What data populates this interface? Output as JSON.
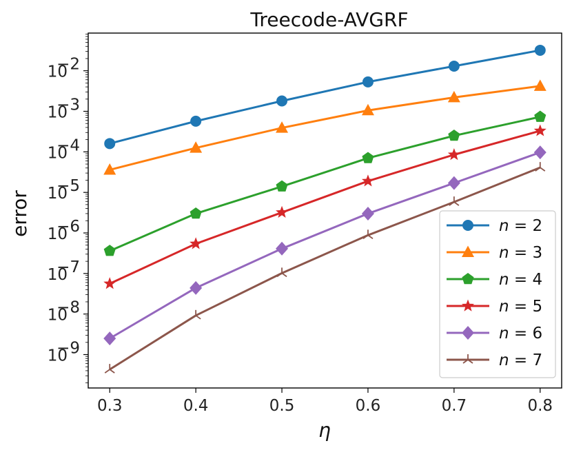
{
  "chart_data": {
    "type": "line",
    "title": "Treecode-AVGRF",
    "xlabel": "η",
    "ylabel": "error",
    "yscale": "log",
    "x": [
      0.3,
      0.4,
      0.5,
      0.6,
      0.7,
      0.8
    ],
    "xticks": [
      "0.3",
      "0.4",
      "0.5",
      "0.6",
      "0.7",
      "0.8"
    ],
    "yticks": [
      {
        "base": "10",
        "exp": "−2",
        "value": 0.01
      },
      {
        "base": "10",
        "exp": "−3",
        "value": 0.001
      },
      {
        "base": "10",
        "exp": "−4",
        "value": 0.0001
      },
      {
        "base": "10",
        "exp": "−5",
        "value": 1e-05
      },
      {
        "base": "10",
        "exp": "−6",
        "value": 1e-06
      },
      {
        "base": "10",
        "exp": "−7",
        "value": 1e-07
      },
      {
        "base": "10",
        "exp": "−8",
        "value": 1e-08
      },
      {
        "base": "10",
        "exp": "−9",
        "value": 1e-09
      }
    ],
    "xlim": [
      0.275,
      0.825
    ],
    "ylim": [
      1.5e-10,
      0.085
    ],
    "legend_position": "lower-right",
    "series": [
      {
        "name": "n = 2",
        "label_var": "n",
        "label_val": "2",
        "color": "#1f77b4",
        "marker": "circle",
        "values": [
          0.00016,
          0.00057,
          0.0018,
          0.0053,
          0.013,
          0.032
        ]
      },
      {
        "name": "n = 3",
        "label_var": "n",
        "label_val": "3",
        "color": "#ff7f0e",
        "marker": "triangle",
        "values": [
          3.6e-05,
          0.000125,
          0.00039,
          0.00105,
          0.0022,
          0.0042
        ]
      },
      {
        "name": "n = 4",
        "label_var": "n",
        "label_val": "4",
        "color": "#2ca02c",
        "marker": "pentagon",
        "values": [
          3.6e-07,
          3e-06,
          1.4e-05,
          7e-05,
          0.00025,
          0.00073
        ]
      },
      {
        "name": "n = 5",
        "label_var": "n",
        "label_val": "5",
        "color": "#d62728",
        "marker": "star",
        "values": [
          5.6e-08,
          5.4e-07,
          3.2e-06,
          1.9e-05,
          8.5e-05,
          0.00033
        ]
      },
      {
        "name": "n = 6",
        "label_var": "n",
        "label_val": "6",
        "color": "#9467bd",
        "marker": "diamond",
        "values": [
          2.5e-09,
          4.4e-08,
          4.1e-07,
          3e-06,
          1.7e-05,
          9.7e-05
        ]
      },
      {
        "name": "n = 7",
        "label_var": "n",
        "label_val": "7",
        "color": "#8c564b",
        "marker": "tri",
        "values": [
          4.3e-10,
          9.2e-09,
          1.02e-07,
          8.8e-07,
          5.8e-06,
          4.1e-05
        ]
      }
    ]
  }
}
